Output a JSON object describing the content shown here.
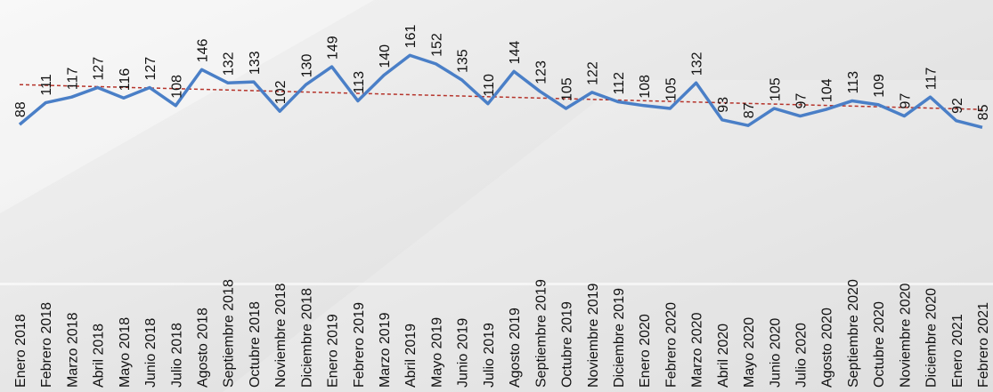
{
  "chart_data": {
    "type": "line",
    "categories": [
      "Enero 2018",
      "Febrero 2018",
      "Marzo 2018",
      "Abril 2018",
      "Mayo 2018",
      "Junio 2018",
      "Julio 2018",
      "Agosto 2018",
      "Septiembre 2018",
      "Octubre 2018",
      "Noviembre 2018",
      "Diciembre 2018",
      "Enero 2019",
      "Febrero 2019",
      "Marzo 2019",
      "Abril 2019",
      "Mayo 2019",
      "Junio 2019",
      "Julio 2019",
      "Agosto 2019",
      "Septiembre 2019",
      "Octubre 2019",
      "Noviembre 2019",
      "Diciembre 2019",
      "Enero 2020",
      "Febrero 2020",
      "Marzo 2020",
      "Abril 2020",
      "Mayo 2020",
      "Junio 2020",
      "Julio 2020",
      "Agosto 2020",
      "Septiembre 2020",
      "Octubre 2020",
      "Noviembre 2020",
      "Diciembre 2020",
      "Enero 2021",
      "Febrero 2021"
    ],
    "values": [
      88,
      111,
      117,
      127,
      116,
      127,
      108,
      146,
      132,
      133,
      102,
      130,
      149,
      113,
      140,
      161,
      152,
      135,
      110,
      144,
      123,
      105,
      122,
      112,
      108,
      105,
      132,
      93,
      87,
      105,
      97,
      104,
      113,
      109,
      97,
      117,
      92,
      85
    ],
    "color": "#4a7fc7",
    "ylim": [
      60,
      180
    ],
    "trendline": true,
    "trendline_color": "#b5332a"
  }
}
